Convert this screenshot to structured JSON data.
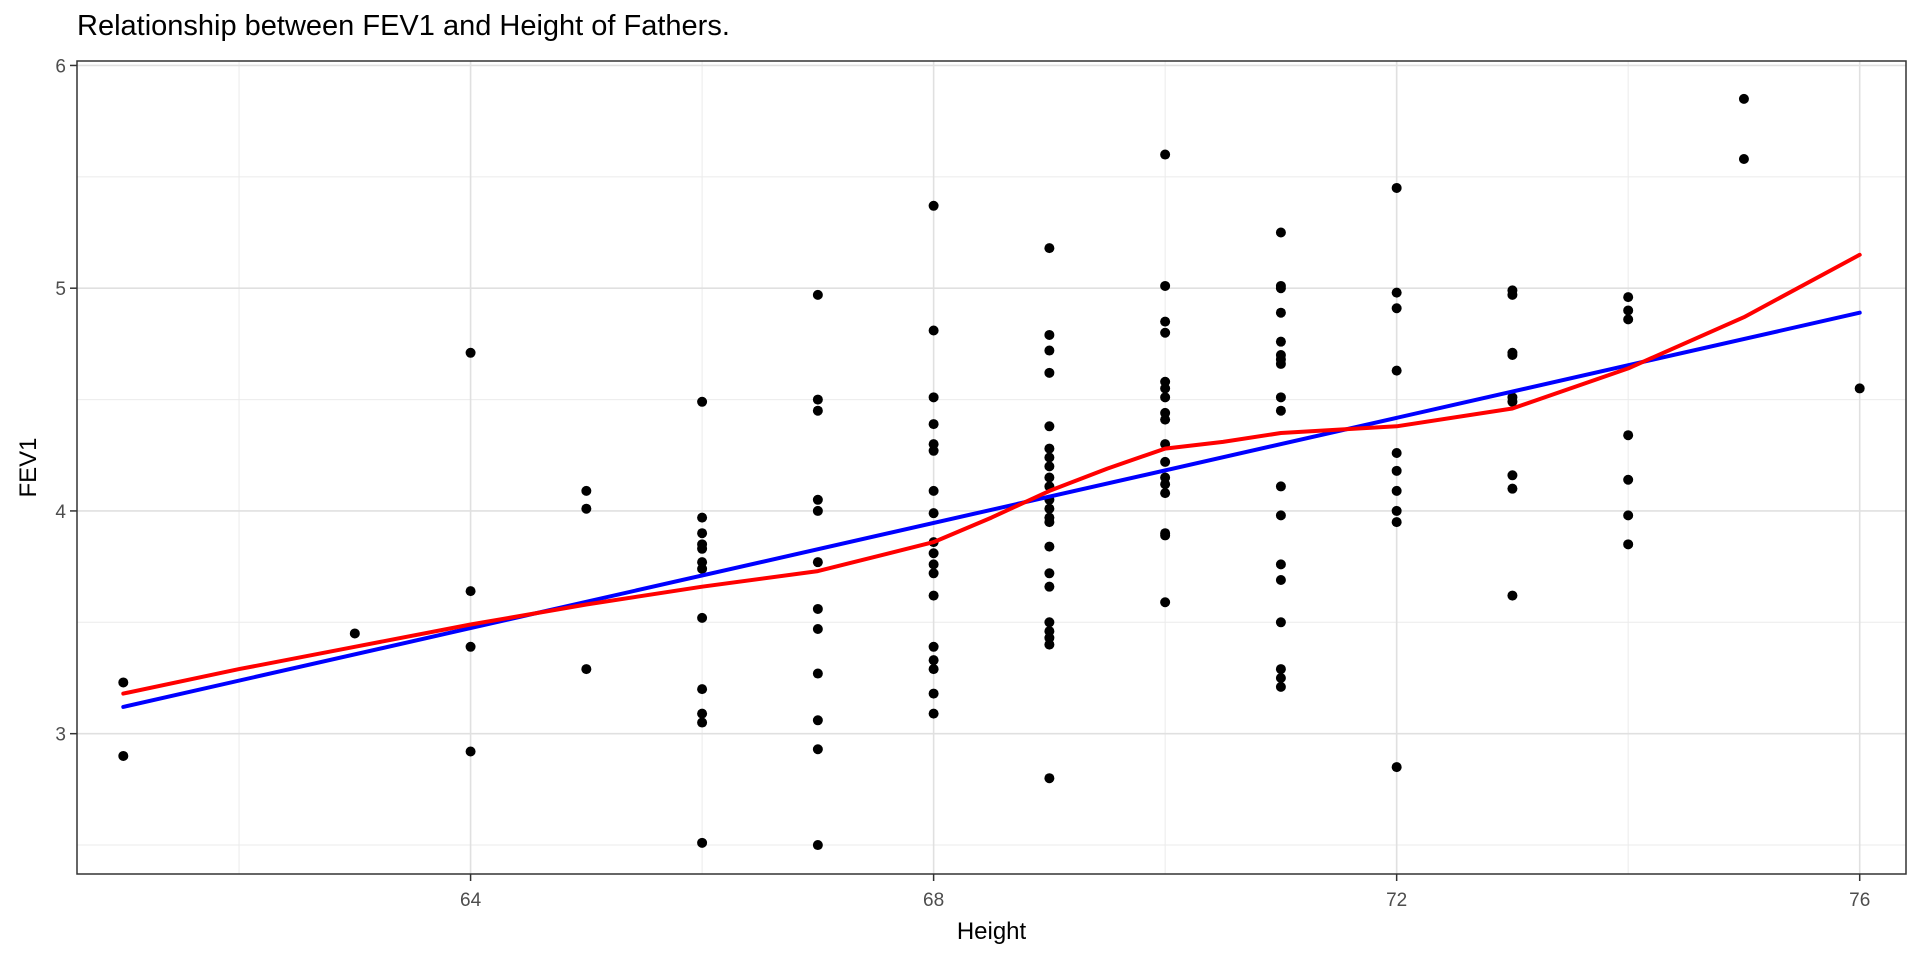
{
  "chart_data": {
    "type": "scatter",
    "title": "Relationship between FEV1 and Height of Fathers.",
    "xlabel": "Height",
    "ylabel": "FEV1",
    "xlim": [
      60.6,
      76.4
    ],
    "ylim": [
      2.37,
      6.02
    ],
    "x_ticks": [
      64,
      68,
      72,
      76
    ],
    "y_ticks": [
      3,
      4,
      5,
      6
    ],
    "grid": true,
    "point_color": "#000000",
    "points": [
      [
        61,
        3.23
      ],
      [
        61,
        2.9
      ],
      [
        63,
        3.45
      ],
      [
        64,
        4.71
      ],
      [
        64,
        3.64
      ],
      [
        64,
        3.39
      ],
      [
        64,
        2.92
      ],
      [
        65,
        4.09
      ],
      [
        65,
        4.01
      ],
      [
        65,
        3.29
      ],
      [
        66,
        4.49
      ],
      [
        66,
        3.97
      ],
      [
        66,
        3.9
      ],
      [
        66,
        3.85
      ],
      [
        66,
        3.83
      ],
      [
        66,
        3.77
      ],
      [
        66,
        3.74
      ],
      [
        66,
        3.52
      ],
      [
        66,
        3.2
      ],
      [
        66,
        3.09
      ],
      [
        66,
        3.05
      ],
      [
        66,
        2.51
      ],
      [
        67,
        4.97
      ],
      [
        67,
        4.5
      ],
      [
        67,
        4.45
      ],
      [
        67,
        4.05
      ],
      [
        67,
        4.0
      ],
      [
        67,
        3.77
      ],
      [
        67,
        3.56
      ],
      [
        67,
        3.47
      ],
      [
        67,
        3.27
      ],
      [
        67,
        3.06
      ],
      [
        67,
        2.93
      ],
      [
        67,
        2.5
      ],
      [
        68,
        5.37
      ],
      [
        68,
        4.81
      ],
      [
        68,
        4.51
      ],
      [
        68,
        4.39
      ],
      [
        68,
        4.3
      ],
      [
        68,
        4.27
      ],
      [
        68,
        4.09
      ],
      [
        68,
        3.99
      ],
      [
        68,
        3.86
      ],
      [
        68,
        3.81
      ],
      [
        68,
        3.76
      ],
      [
        68,
        3.72
      ],
      [
        68,
        3.62
      ],
      [
        68,
        3.39
      ],
      [
        68,
        3.33
      ],
      [
        68,
        3.29
      ],
      [
        68,
        3.18
      ],
      [
        68,
        3.09
      ],
      [
        69,
        5.18
      ],
      [
        69,
        4.79
      ],
      [
        69,
        4.72
      ],
      [
        69,
        4.62
      ],
      [
        69,
        4.38
      ],
      [
        69,
        4.28
      ],
      [
        69,
        4.24
      ],
      [
        69,
        4.2
      ],
      [
        69,
        4.15
      ],
      [
        69,
        4.11
      ],
      [
        69,
        4.05
      ],
      [
        69,
        4.01
      ],
      [
        69,
        3.97
      ],
      [
        69,
        3.95
      ],
      [
        69,
        3.84
      ],
      [
        69,
        3.72
      ],
      [
        69,
        3.66
      ],
      [
        69,
        3.5
      ],
      [
        69,
        3.46
      ],
      [
        69,
        3.43
      ],
      [
        69,
        3.4
      ],
      [
        69,
        2.8
      ],
      [
        70,
        5.6
      ],
      [
        70,
        5.01
      ],
      [
        70,
        4.85
      ],
      [
        70,
        4.8
      ],
      [
        70,
        4.58
      ],
      [
        70,
        4.55
      ],
      [
        70,
        4.51
      ],
      [
        70,
        4.44
      ],
      [
        70,
        4.41
      ],
      [
        70,
        4.3
      ],
      [
        70,
        4.22
      ],
      [
        70,
        4.15
      ],
      [
        70,
        4.12
      ],
      [
        70,
        4.08
      ],
      [
        70,
        3.9
      ],
      [
        70,
        3.89
      ],
      [
        70,
        3.59
      ],
      [
        71,
        5.25
      ],
      [
        71,
        5.01
      ],
      [
        71,
        5.0
      ],
      [
        71,
        4.89
      ],
      [
        71,
        4.76
      ],
      [
        71,
        4.7
      ],
      [
        71,
        4.68
      ],
      [
        71,
        4.66
      ],
      [
        71,
        4.51
      ],
      [
        71,
        4.45
      ],
      [
        71,
        4.11
      ],
      [
        71,
        3.98
      ],
      [
        71,
        3.76
      ],
      [
        71,
        3.69
      ],
      [
        71,
        3.5
      ],
      [
        71,
        3.29
      ],
      [
        71,
        3.25
      ],
      [
        71,
        3.21
      ],
      [
        72,
        5.45
      ],
      [
        72,
        4.98
      ],
      [
        72,
        4.91
      ],
      [
        72,
        4.63
      ],
      [
        72,
        4.26
      ],
      [
        72,
        4.18
      ],
      [
        72,
        4.09
      ],
      [
        72,
        4.0
      ],
      [
        72,
        3.95
      ],
      [
        72,
        2.85
      ],
      [
        73,
        4.99
      ],
      [
        73,
        4.97
      ],
      [
        73,
        4.71
      ],
      [
        73,
        4.7
      ],
      [
        73,
        4.51
      ],
      [
        73,
        4.49
      ],
      [
        73,
        4.16
      ],
      [
        73,
        4.1
      ],
      [
        73,
        3.62
      ],
      [
        74,
        4.96
      ],
      [
        74,
        4.9
      ],
      [
        74,
        4.86
      ],
      [
        74,
        4.34
      ],
      [
        74,
        4.14
      ],
      [
        74,
        3.98
      ],
      [
        74,
        3.85
      ],
      [
        75,
        5.85
      ],
      [
        75,
        5.58
      ],
      [
        76,
        4.55
      ]
    ],
    "series": [
      {
        "type": "line",
        "color": "#0000ff",
        "x": [
          61,
          76
        ],
        "y": [
          3.12,
          4.89
        ]
      },
      {
        "type": "line",
        "color": "#ff0000",
        "x": [
          61,
          62,
          63,
          64,
          65,
          66,
          67,
          68,
          68.5,
          69,
          69.5,
          70,
          70.5,
          71,
          72,
          73,
          74,
          75,
          76
        ],
        "y": [
          3.18,
          3.29,
          3.39,
          3.49,
          3.58,
          3.66,
          3.73,
          3.86,
          3.97,
          4.09,
          4.19,
          4.28,
          4.31,
          4.35,
          4.38,
          4.46,
          4.64,
          4.87,
          5.15
        ]
      }
    ]
  }
}
